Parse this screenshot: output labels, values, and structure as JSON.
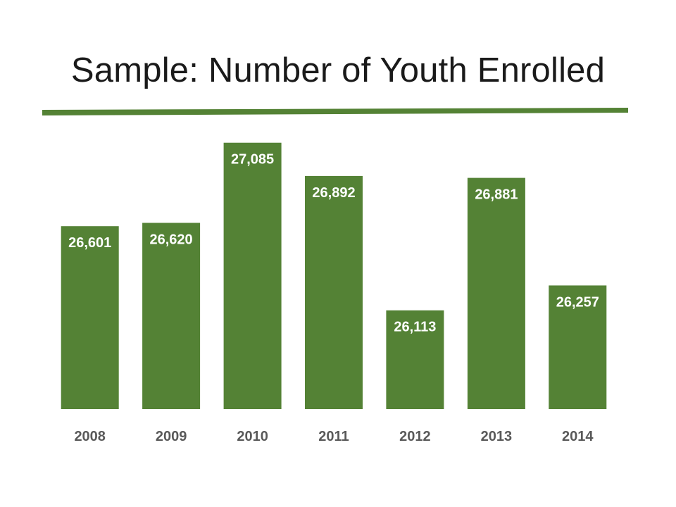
{
  "slide": {
    "title": "Sample: Number of Youth Enrolled",
    "accent_color": "#548235"
  },
  "chart_data": {
    "type": "bar",
    "title": "",
    "xlabel": "",
    "ylabel": "",
    "categories": [
      "2008",
      "2009",
      "2010",
      "2011",
      "2012",
      "2013",
      "2014"
    ],
    "values": [
      26601,
      26620,
      27085,
      26892,
      26113,
      26881,
      26257
    ],
    "value_labels": [
      "26,601",
      "26,620",
      "27,085",
      "26,892",
      "26,113",
      "26,881",
      "26,257"
    ],
    "data_labels": "inside-end",
    "ylim": [
      25540,
      27100
    ],
    "grid": false,
    "legend": "none",
    "bar_color": "#548235",
    "label_color": "#ffffff",
    "category_label_color": "#595959"
  }
}
